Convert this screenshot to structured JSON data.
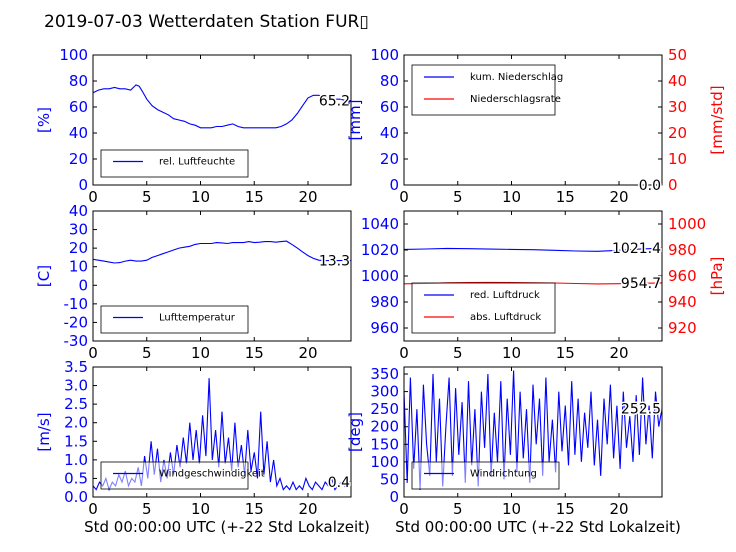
{
  "title": "2019-07-03 Wetterdaten Station FUR▯",
  "colors": {
    "left_axis": "#0000ff",
    "right_axis": "#ff0000",
    "frame": "#000000"
  },
  "chart_data": [
    {
      "id": "humidity",
      "type": "line",
      "ylabel": "[%]",
      "ylim": [
        0,
        100
      ],
      "yticks": [
        0,
        20,
        40,
        60,
        80,
        100
      ],
      "xlim": [
        0,
        24
      ],
      "xticks": [
        0,
        5,
        10,
        15,
        20
      ],
      "legend": [
        "rel. Luftfeuchte"
      ],
      "legend_position": "lower-left",
      "last_value": "65.2",
      "series": [
        {
          "name": "rel. Luftfeuchte",
          "color": "#0000ff",
          "x": [
            0,
            0.5,
            1,
            1.5,
            2,
            2.5,
            3,
            3.5,
            4,
            4.3,
            4.6,
            5,
            5.5,
            6,
            6.5,
            7,
            7.5,
            8,
            8.5,
            9,
            9.5,
            10,
            10.5,
            11,
            11.5,
            12,
            12.5,
            13,
            13.5,
            14,
            14.5,
            15,
            15.5,
            16,
            16.5,
            17,
            17.5,
            18,
            18.5,
            19,
            19.5,
            20,
            20.5,
            21,
            21.5,
            22,
            22.5,
            23,
            23.5,
            24
          ],
          "y": [
            71,
            73,
            74,
            74,
            75,
            74,
            74,
            73,
            77,
            76,
            72,
            66,
            61,
            58,
            56,
            54,
            51,
            50,
            49,
            47,
            46,
            44,
            44,
            44,
            45,
            45,
            46,
            47,
            45,
            44,
            44,
            44,
            44,
            44,
            44,
            44,
            45,
            47,
            50,
            55,
            61,
            67,
            69,
            69,
            68,
            67,
            66,
            66,
            65,
            65
          ]
        }
      ]
    },
    {
      "id": "precipitation",
      "type": "line",
      "ylabel": "[mm]",
      "ylim": [
        0,
        100
      ],
      "yticks": [
        0,
        20,
        40,
        60,
        80,
        100
      ],
      "ylabel_right": "[mm/std]",
      "ylim_right": [
        0,
        50
      ],
      "yticks_right": [
        0,
        10,
        20,
        30,
        40,
        50
      ],
      "xlim": [
        0,
        24
      ],
      "xticks": [
        0,
        5,
        10,
        15,
        20
      ],
      "legend": [
        "kum. Niederschlag",
        "Niederschlagsrate"
      ],
      "legend_position": "upper-left",
      "last_values": [
        "0.0",
        "0.0"
      ],
      "series": [
        {
          "name": "kum. Niederschlag",
          "color": "#0000ff",
          "axis": "left",
          "x": [
            0,
            24
          ],
          "y": [
            0,
            0
          ]
        },
        {
          "name": "Niederschlagsrate",
          "color": "#ff0000",
          "axis": "right",
          "x": [
            0,
            24
          ],
          "y": [
            0,
            0
          ]
        }
      ]
    },
    {
      "id": "temperature",
      "type": "line",
      "ylabel": "[C]",
      "ylim": [
        -30,
        40
      ],
      "yticks": [
        -30,
        -20,
        -10,
        0,
        10,
        20,
        30,
        40
      ],
      "xlim": [
        0,
        24
      ],
      "xticks": [
        0,
        5,
        10,
        15,
        20
      ],
      "legend": [
        "Lufttemperatur"
      ],
      "legend_position": "lower-left",
      "last_value": "13.3",
      "series": [
        {
          "name": "Lufttemperatur",
          "color": "#0000ff",
          "x": [
            0,
            0.5,
            1,
            1.5,
            2,
            2.5,
            3,
            3.5,
            4,
            4.5,
            5,
            5.5,
            6,
            6.5,
            7,
            7.5,
            8,
            8.5,
            9,
            9.5,
            10,
            10.5,
            11,
            11.5,
            12,
            12.5,
            13,
            13.5,
            14,
            14.5,
            15,
            15.5,
            16,
            16.5,
            17,
            17.5,
            18,
            18.5,
            19,
            19.5,
            20,
            20.5,
            21,
            21.5,
            22,
            22.5,
            23,
            23.5,
            24
          ],
          "y": [
            14,
            13.5,
            13,
            12.5,
            12,
            12.2,
            13,
            13.5,
            13,
            13,
            13.5,
            15,
            16,
            17,
            18,
            19,
            20,
            20.5,
            21,
            22,
            22.5,
            22.5,
            22.5,
            23,
            22.8,
            22.5,
            23,
            23,
            23,
            23.5,
            23,
            23.2,
            23.5,
            23.5,
            23.2,
            23.5,
            23.8,
            22,
            20,
            18,
            16,
            14.5,
            13.5,
            13.3,
            13.3,
            13.3,
            13.3,
            13.3,
            13.3
          ]
        }
      ]
    },
    {
      "id": "pressure",
      "type": "line",
      "ylabel_right": "[hPa]",
      "ylim": [
        950,
        1050
      ],
      "yticks": [
        960,
        980,
        1000,
        1020,
        1040
      ],
      "ylim_right": [
        910,
        1010
      ],
      "yticks_right": [
        920,
        940,
        960,
        980,
        1000
      ],
      "xlim": [
        0,
        24
      ],
      "xticks": [
        0,
        5,
        10,
        15,
        20
      ],
      "legend": [
        "red. Luftdruck",
        "abs. Luftdruck"
      ],
      "legend_position": "lower-left",
      "last_values": [
        "1021.4",
        "954.7"
      ],
      "series": [
        {
          "name": "red. Luftdruck",
          "color": "#0000ff",
          "axis": "left",
          "x": [
            0,
            2,
            4,
            6,
            8,
            10,
            12,
            14,
            16,
            18,
            20,
            22,
            24
          ],
          "y": [
            1020.5,
            1020.8,
            1021.2,
            1021.0,
            1020.7,
            1020.5,
            1020.2,
            1019.8,
            1019.2,
            1019.0,
            1019.8,
            1020.8,
            1021.4
          ]
        },
        {
          "name": "abs. Luftdruck",
          "color": "#ff0000",
          "axis": "right",
          "x": [
            0,
            2,
            4,
            6,
            8,
            10,
            12,
            14,
            16,
            18,
            20,
            22,
            24
          ],
          "y": [
            954.0,
            954.3,
            954.8,
            955.0,
            955.1,
            955.0,
            954.8,
            954.6,
            954.2,
            953.9,
            954.1,
            954.4,
            954.7
          ]
        }
      ]
    },
    {
      "id": "windspeed",
      "type": "line",
      "ylabel": "[m/s]",
      "ylim": [
        0,
        3.5
      ],
      "yticks": [
        0.0,
        0.5,
        1.0,
        1.5,
        2.0,
        2.5,
        3.0,
        3.5
      ],
      "xlim": [
        0,
        24
      ],
      "xticks": [
        0,
        5,
        10,
        15,
        20
      ],
      "xlabel": "Std 00:00:00 UTC (+-22 Std Lokalzeit)",
      "legend": [
        "Windgeschwindigkeit"
      ],
      "legend_position": "lower-left",
      "last_value": "0.4",
      "series": [
        {
          "name": "Windgeschwindigkeit",
          "color": "#0000ff",
          "x": [
            0,
            0.3,
            0.6,
            0.9,
            1.2,
            1.5,
            1.8,
            2.1,
            2.4,
            2.7,
            3.0,
            3.3,
            3.6,
            3.9,
            4.2,
            4.5,
            4.8,
            5.1,
            5.4,
            5.7,
            6.0,
            6.3,
            6.6,
            6.9,
            7.2,
            7.5,
            7.8,
            8.1,
            8.4,
            8.7,
            9.0,
            9.3,
            9.6,
            9.9,
            10.2,
            10.5,
            10.8,
            11.1,
            11.4,
            11.7,
            12.0,
            12.3,
            12.6,
            12.9,
            13.2,
            13.5,
            13.8,
            14.1,
            14.4,
            14.7,
            15.0,
            15.3,
            15.6,
            15.9,
            16.2,
            16.5,
            16.8,
            17.1,
            17.4,
            17.7,
            18.0,
            18.3,
            18.6,
            18.9,
            19.2,
            19.5,
            19.8,
            20.1,
            20.4,
            20.7,
            21.0,
            21.3,
            21.6,
            21.9,
            22.2,
            22.5,
            22.8,
            23.1,
            23.4,
            23.7,
            24.0
          ],
          "y": [
            0.3,
            0.2,
            0.4,
            0.3,
            0.5,
            0.2,
            0.4,
            0.3,
            0.6,
            0.4,
            0.7,
            0.3,
            0.5,
            0.4,
            0.8,
            0.3,
            1.1,
            0.5,
            1.5,
            0.6,
            1.3,
            0.4,
            1.0,
            0.5,
            1.2,
            0.6,
            1.4,
            0.8,
            1.6,
            0.9,
            2.0,
            1.0,
            1.8,
            0.9,
            2.2,
            1.1,
            3.2,
            1.0,
            1.8,
            0.8,
            2.3,
            0.9,
            1.6,
            0.7,
            2.0,
            0.8,
            1.4,
            0.6,
            1.8,
            0.7,
            1.2,
            0.5,
            2.3,
            0.6,
            1.5,
            0.4,
            1.0,
            0.3,
            0.5,
            0.2,
            0.3,
            0.2,
            0.4,
            0.2,
            0.3,
            0.2,
            0.5,
            0.3,
            0.2,
            0.4,
            0.3,
            0.2,
            0.4,
            0.3,
            0.5,
            0.2,
            0.3,
            0.4,
            0.3,
            0.4,
            0.4
          ]
        }
      ]
    },
    {
      "id": "winddir",
      "type": "line",
      "ylabel": "[deg]",
      "ylim": [
        0,
        370
      ],
      "yticks": [
        0,
        50,
        100,
        150,
        200,
        250,
        300,
        350
      ],
      "xlim": [
        0,
        24
      ],
      "xticks": [
        0,
        5,
        10,
        15,
        20
      ],
      "xlabel": "Std 00:00:00 UTC (+-22 Std Lokalzeit)",
      "legend": [
        "Windrichtung"
      ],
      "legend_position": "lower-left",
      "last_value": "252.5",
      "series": [
        {
          "name": "Windrichtung",
          "color": "#0000ff",
          "x": [
            0,
            0.3,
            0.6,
            0.9,
            1.2,
            1.5,
            1.8,
            2.1,
            2.4,
            2.7,
            3.0,
            3.3,
            3.6,
            3.9,
            4.2,
            4.5,
            4.8,
            5.1,
            5.4,
            5.7,
            6.0,
            6.3,
            6.6,
            6.9,
            7.2,
            7.5,
            7.8,
            8.1,
            8.4,
            8.7,
            9.0,
            9.3,
            9.6,
            9.9,
            10.2,
            10.5,
            10.8,
            11.1,
            11.4,
            11.7,
            12.0,
            12.3,
            12.6,
            12.9,
            13.2,
            13.5,
            13.8,
            14.1,
            14.4,
            14.7,
            15.0,
            15.3,
            15.6,
            15.9,
            16.2,
            16.5,
            16.8,
            17.1,
            17.4,
            17.7,
            18.0,
            18.3,
            18.6,
            18.9,
            19.2,
            19.5,
            19.8,
            20.1,
            20.4,
            20.7,
            21.0,
            21.3,
            21.6,
            21.9,
            22.2,
            22.5,
            22.8,
            23.1,
            23.4,
            23.7,
            24.0
          ],
          "y": [
            300,
            40,
            340,
            80,
            250,
            20,
            320,
            150,
            60,
            350,
            100,
            280,
            30,
            200,
            340,
            60,
            310,
            120,
            270,
            40,
            330,
            90,
            250,
            30,
            300,
            140,
            350,
            60,
            240,
            100,
            330,
            50,
            280,
            120,
            360,
            70,
            300,
            110,
            250,
            40,
            320,
            150,
            280,
            60,
            340,
            100,
            220,
            70,
            300,
            130,
            260,
            90,
            330,
            120,
            280,
            100,
            240,
            140,
            300,
            90,
            220,
            60,
            280,
            150,
            320,
            110,
            260,
            80,
            300,
            140,
            230,
            100,
            290,
            120,
            340,
            150,
            260,
            110,
            300,
            200,
            252.5
          ]
        }
      ]
    }
  ]
}
